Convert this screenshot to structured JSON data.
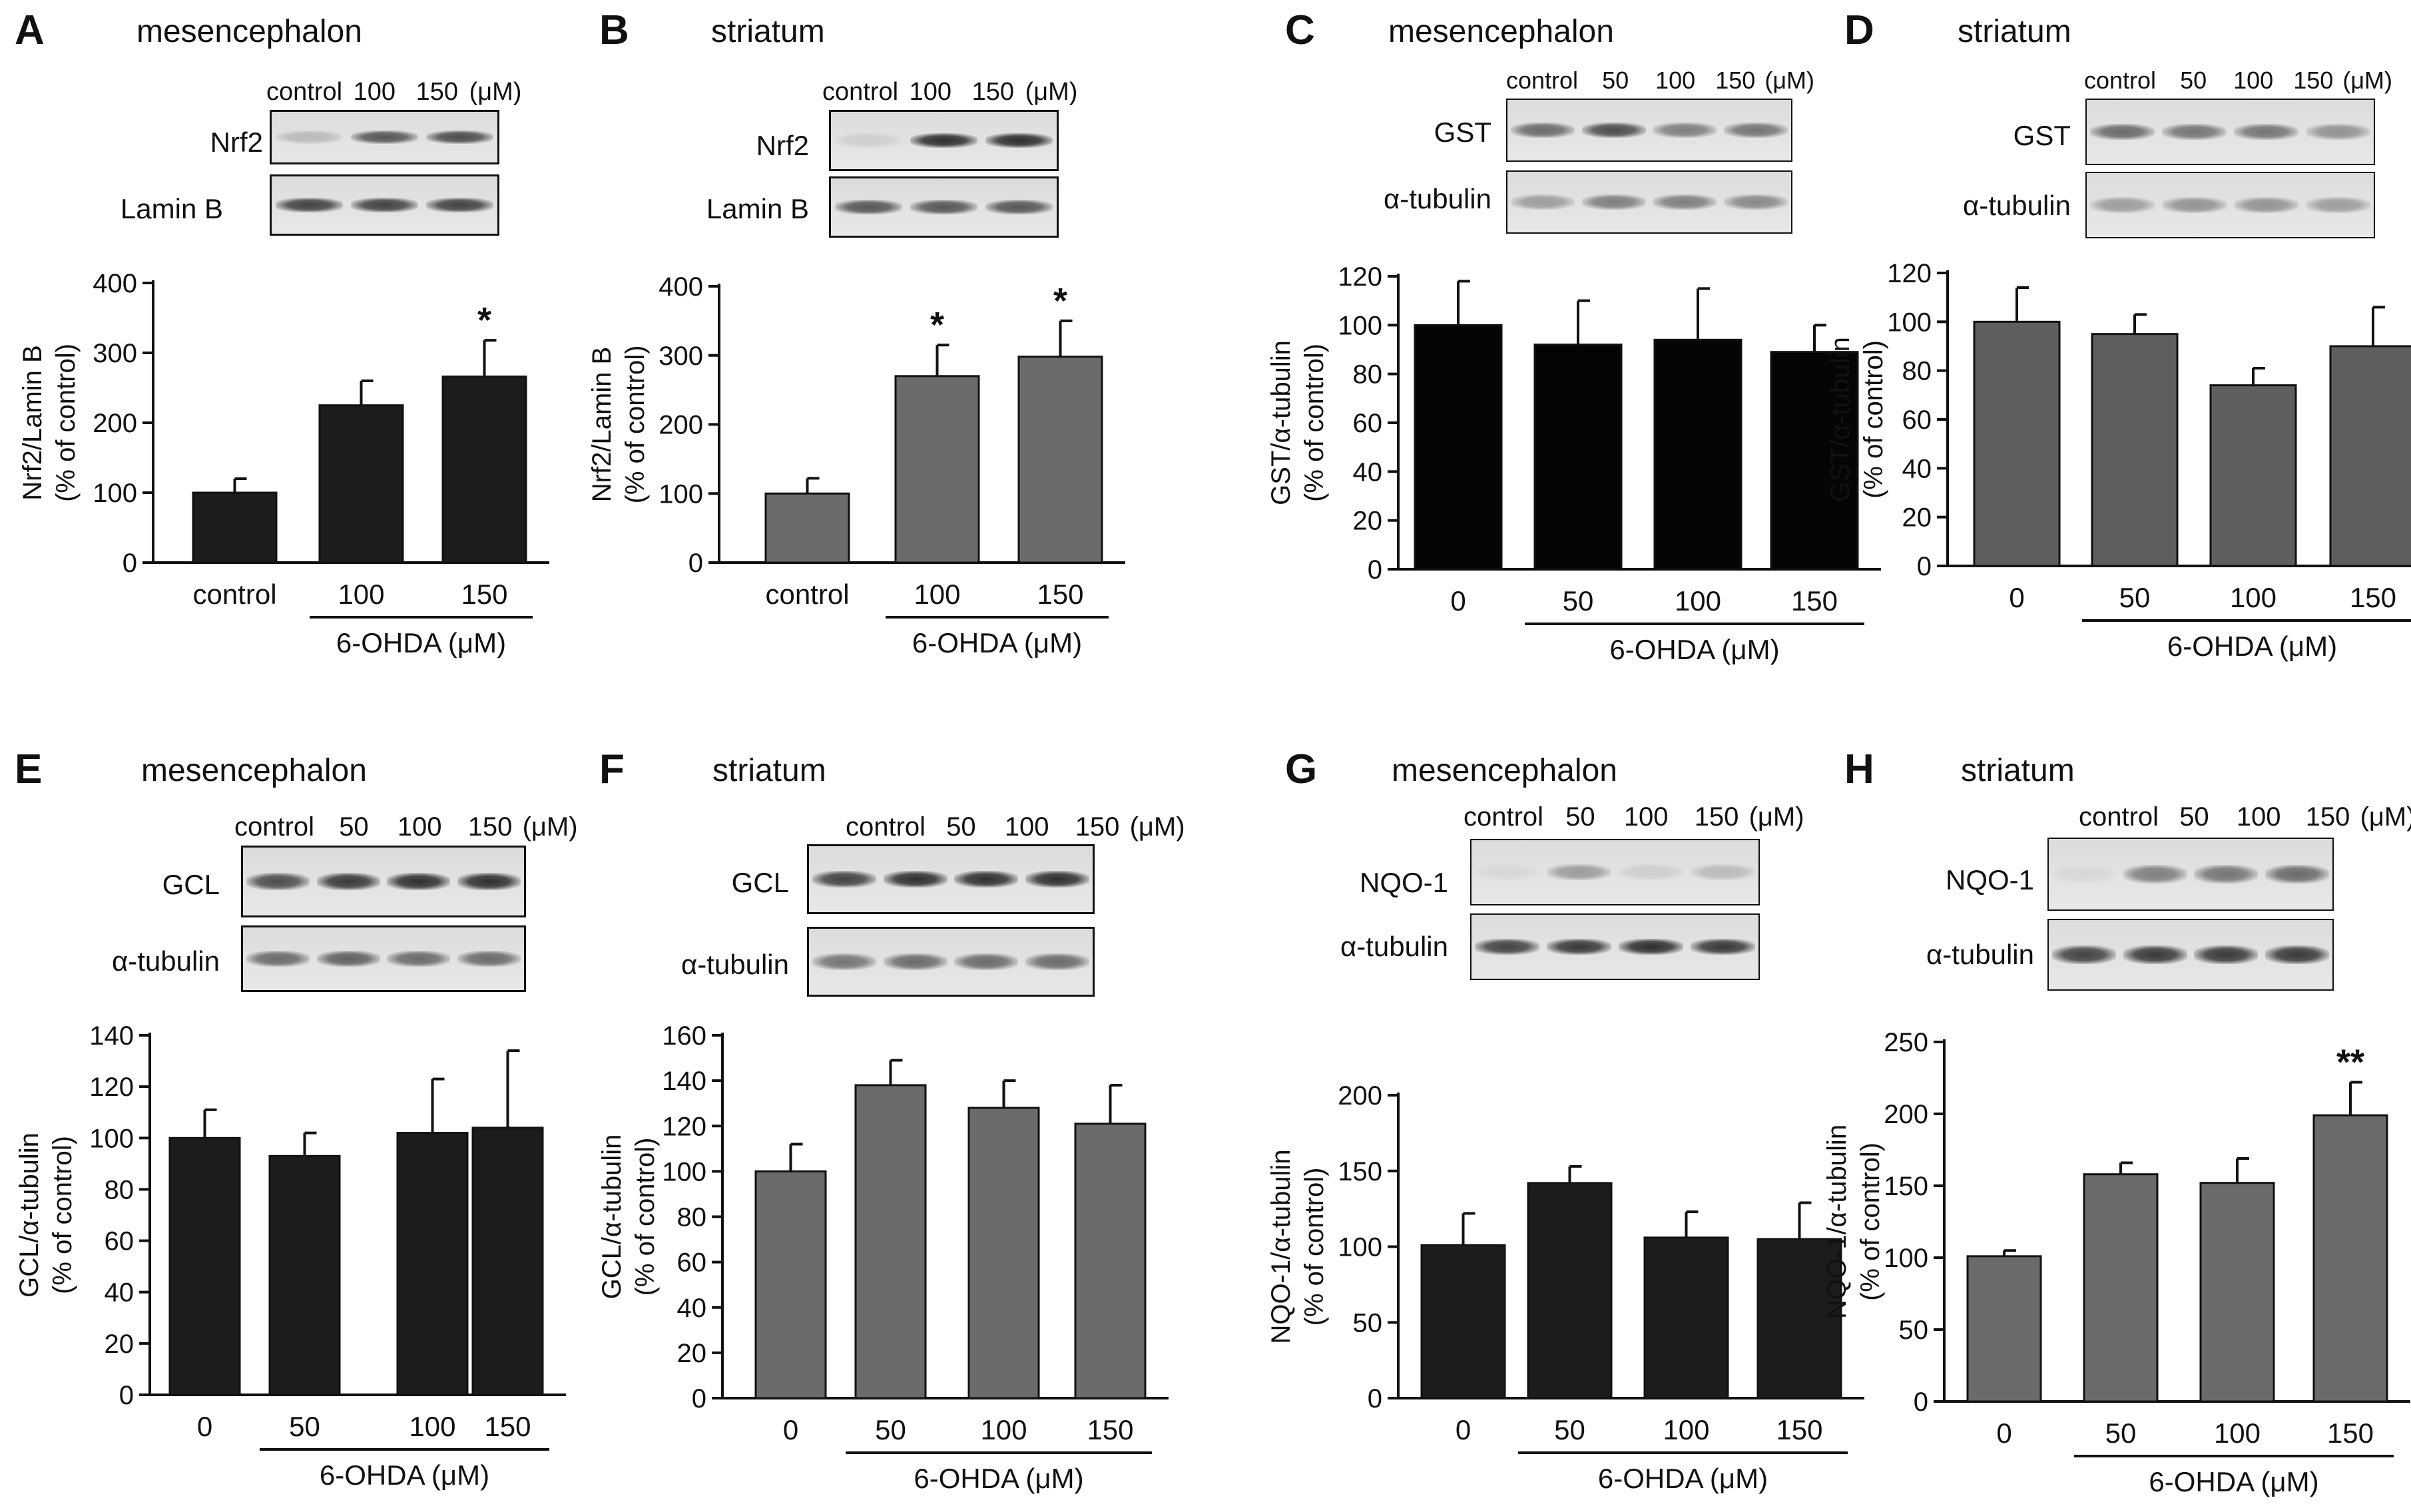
{
  "panels": [
    {
      "letter": "A",
      "region": "mesencephalon",
      "lanes_header": [
        "control",
        "100",
        "150",
        "(μM)"
      ],
      "blots": [
        {
          "label": "Nrf2",
          "intensities": [
            0.2,
            0.7,
            0.75
          ]
        },
        {
          "label": "Lamin B",
          "intensities": [
            0.8,
            0.8,
            0.8
          ]
        }
      ],
      "chart_data": {
        "type": "bar",
        "bar_color": "#1c1c1c",
        "categories": [
          "control",
          "100",
          "150"
        ],
        "values": [
          100,
          225,
          266
        ],
        "errors": [
          20,
          35,
          52
        ],
        "annotations": [
          "",
          "",
          "*"
        ],
        "ylim": [
          0,
          400
        ],
        "yticks": [
          0,
          100,
          200,
          300,
          400
        ],
        "ylabel_lines": [
          "Nrf2/Lamin B",
          "(% of control)"
        ],
        "xgroup_label": "6-OHDA (μM)",
        "group_start_index": 1
      }
    },
    {
      "letter": "B",
      "region": "striatum",
      "lanes_header": [
        "control",
        "100",
        "150",
        "(μM)"
      ],
      "blots": [
        {
          "label": "Nrf2",
          "intensities": [
            0.1,
            0.9,
            0.9
          ]
        },
        {
          "label": "Lamin B",
          "intensities": [
            0.7,
            0.7,
            0.7
          ]
        }
      ],
      "chart_data": {
        "type": "bar",
        "bar_color": "#6b6b6b",
        "categories": [
          "control",
          "100",
          "150"
        ],
        "values": [
          100,
          270,
          298
        ],
        "errors": [
          22,
          45,
          52
        ],
        "annotations": [
          "",
          "*",
          "*"
        ],
        "ylim": [
          0,
          400
        ],
        "yticks": [
          0,
          100,
          200,
          300,
          400
        ],
        "ylabel_lines": [
          "Nrf2/Lamin B",
          "(% of control)"
        ],
        "xgroup_label": "6-OHDA (μM)",
        "group_start_index": 1
      }
    },
    {
      "letter": "C",
      "region": "mesencephalon",
      "lanes_header": [
        "control",
        "50",
        "100",
        "150",
        "(μM)"
      ],
      "blots": [
        {
          "label": "GST",
          "intensities": [
            0.6,
            0.75,
            0.5,
            0.55
          ]
        },
        {
          "label": "α-tubulin",
          "intensities": [
            0.35,
            0.5,
            0.5,
            0.45
          ]
        }
      ],
      "chart_data": {
        "type": "bar",
        "bar_color": "#050505",
        "categories": [
          "0",
          "50",
          "100",
          "150"
        ],
        "values": [
          100,
          92,
          94,
          89
        ],
        "errors": [
          18,
          18,
          21,
          11
        ],
        "annotations": [
          "",
          "",
          "",
          ""
        ],
        "ylim": [
          0,
          120
        ],
        "yticks": [
          0,
          20,
          40,
          60,
          80,
          100,
          120
        ],
        "ylabel_lines": [
          "GST/α-tubulin",
          "(% of control)"
        ],
        "xgroup_label": "6-OHDA (μM)",
        "group_start_index": 1
      }
    },
    {
      "letter": "D",
      "region": "striatum",
      "lanes_header": [
        "control",
        "50",
        "100",
        "150",
        "(μM)"
      ],
      "blots": [
        {
          "label": "GST",
          "intensities": [
            0.6,
            0.55,
            0.55,
            0.4
          ]
        },
        {
          "label": "α-tubulin",
          "intensities": [
            0.35,
            0.4,
            0.4,
            0.35
          ]
        }
      ],
      "chart_data": {
        "type": "bar",
        "bar_color": "#5e5e5e",
        "categories": [
          "0",
          "50",
          "100",
          "150"
        ],
        "values": [
          100,
          95,
          74,
          90
        ],
        "errors": [
          14,
          8,
          7,
          16
        ],
        "annotations": [
          "",
          "",
          "",
          ""
        ],
        "ylim": [
          0,
          120
        ],
        "yticks": [
          0,
          20,
          40,
          60,
          80,
          100,
          120
        ],
        "ylabel_lines": [
          "GST/α-tubulin",
          "(% of control)"
        ],
        "xgroup_label": "6-OHDA (μM)",
        "group_start_index": 1
      }
    },
    {
      "letter": "E",
      "region": "mesencephalon",
      "lanes_header": [
        "control",
        "50",
        "100",
        "150",
        "(μM)"
      ],
      "blots": [
        {
          "label": "GCL",
          "intensities": [
            0.75,
            0.85,
            0.9,
            0.9
          ]
        },
        {
          "label": "α-tubulin",
          "intensities": [
            0.6,
            0.65,
            0.6,
            0.6
          ]
        }
      ],
      "chart_data": {
        "type": "bar",
        "bar_color": "#1c1c1c",
        "categories": [
          "0",
          "50",
          "100",
          "150"
        ],
        "values": [
          100,
          93,
          102,
          104
        ],
        "errors": [
          11,
          9,
          21,
          30
        ],
        "annotations": [
          "",
          "",
          "",
          ""
        ],
        "ylim": [
          0,
          140
        ],
        "yticks": [
          0,
          20,
          40,
          60,
          80,
          100,
          120,
          140
        ],
        "ylabel_lines": [
          "GCL/α-tubulin",
          "(% of control)"
        ],
        "xgroup_label": "6-OHDA (μM)",
        "group_start_index": 1
      }
    },
    {
      "letter": "F",
      "region": "striatum",
      "lanes_header": [
        "control",
        "50",
        "100",
        "150",
        "(μM)"
      ],
      "blots": [
        {
          "label": "GCL",
          "intensities": [
            0.8,
            0.9,
            0.9,
            0.9
          ]
        },
        {
          "label": "α-tubulin",
          "intensities": [
            0.55,
            0.6,
            0.6,
            0.6
          ]
        }
      ],
      "chart_data": {
        "type": "bar",
        "bar_color": "#6b6b6b",
        "categories": [
          "0",
          "50",
          "100",
          "150"
        ],
        "values": [
          100,
          138,
          128,
          121
        ],
        "errors": [
          12,
          11,
          12,
          17
        ],
        "annotations": [
          "",
          "",
          "",
          ""
        ],
        "ylim": [
          0,
          160
        ],
        "yticks": [
          0,
          20,
          40,
          60,
          80,
          100,
          120,
          140,
          160
        ],
        "ylabel_lines": [
          "GCL/α-tubulin",
          "(% of control)"
        ],
        "xgroup_label": "6-OHDA (μM)",
        "group_start_index": 1
      }
    },
    {
      "letter": "G",
      "region": "mesencephalon",
      "lanes_header": [
        "control",
        "50",
        "100",
        "150",
        "(μM)"
      ],
      "blots": [
        {
          "label": "NQO-1",
          "intensities": [
            0.05,
            0.35,
            0.1,
            0.2
          ]
        },
        {
          "label": "α-tubulin",
          "intensities": [
            0.8,
            0.85,
            0.9,
            0.85
          ]
        }
      ],
      "chart_data": {
        "type": "bar",
        "bar_color": "#1c1c1c",
        "categories": [
          "0",
          "50",
          "100",
          "150"
        ],
        "values": [
          101,
          142,
          106,
          105
        ],
        "errors": [
          21,
          11,
          17,
          24
        ],
        "annotations": [
          "",
          "",
          "",
          ""
        ],
        "ylim": [
          0,
          200
        ],
        "yticks": [
          0,
          50,
          100,
          150,
          200
        ],
        "ylabel_lines": [
          "NQO-1/α-tubulin",
          "(% of control)"
        ],
        "xgroup_label": "6-OHDA (μM)",
        "group_start_index": 1
      }
    },
    {
      "letter": "H",
      "region": "striatum",
      "lanes_header": [
        "control",
        "50",
        "100",
        "150",
        "(μM)"
      ],
      "blots": [
        {
          "label": "NQO-1",
          "intensities": [
            0.05,
            0.5,
            0.55,
            0.6
          ]
        },
        {
          "label": "α-tubulin",
          "intensities": [
            0.8,
            0.85,
            0.85,
            0.85
          ]
        }
      ],
      "chart_data": {
        "type": "bar",
        "bar_color": "#6b6b6b",
        "categories": [
          "0",
          "50",
          "100",
          "150"
        ],
        "values": [
          101,
          158,
          152,
          199
        ],
        "errors": [
          4,
          8,
          17,
          23
        ],
        "annotations": [
          "",
          "",
          "",
          "**"
        ],
        "ylim": [
          0,
          250
        ],
        "yticks": [
          0,
          50,
          100,
          150,
          200,
          250
        ],
        "ylabel_lines": [
          "NQO-1/α-tubulin",
          "(% of control)"
        ],
        "xgroup_label": "6-OHDA (μM)",
        "group_start_index": 1
      }
    }
  ]
}
